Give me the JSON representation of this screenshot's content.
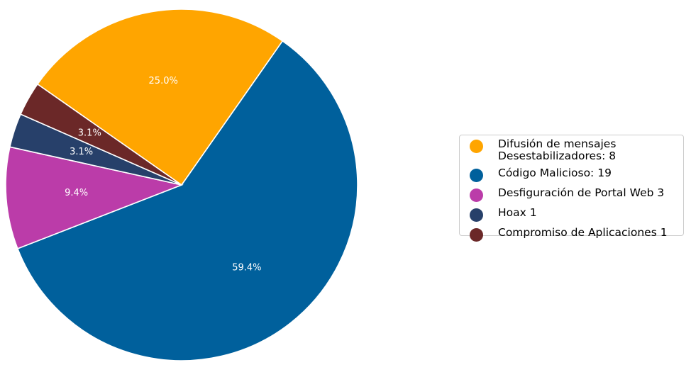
{
  "chart_data": {
    "type": "pie",
    "categories": [
      "Difusión de mensajes\nDesestabilizadores: 8",
      "Código Malicioso: 19",
      "Desfiguración de Portal Web 3",
      "Hoax 1",
      "Compromiso de Aplicaciones 1"
    ],
    "values": [
      8,
      19,
      3,
      1,
      1
    ],
    "percent_labels": [
      "25.0%",
      "59.4%",
      "9.4%",
      "3.1%",
      "3.1%"
    ],
    "colors": [
      "#FFA500",
      "#00609C",
      "#BB3CA9",
      "#27406A",
      "#6B2828"
    ],
    "start_angle_deg": 145,
    "direction": "clockwise",
    "legend_position": "right"
  }
}
